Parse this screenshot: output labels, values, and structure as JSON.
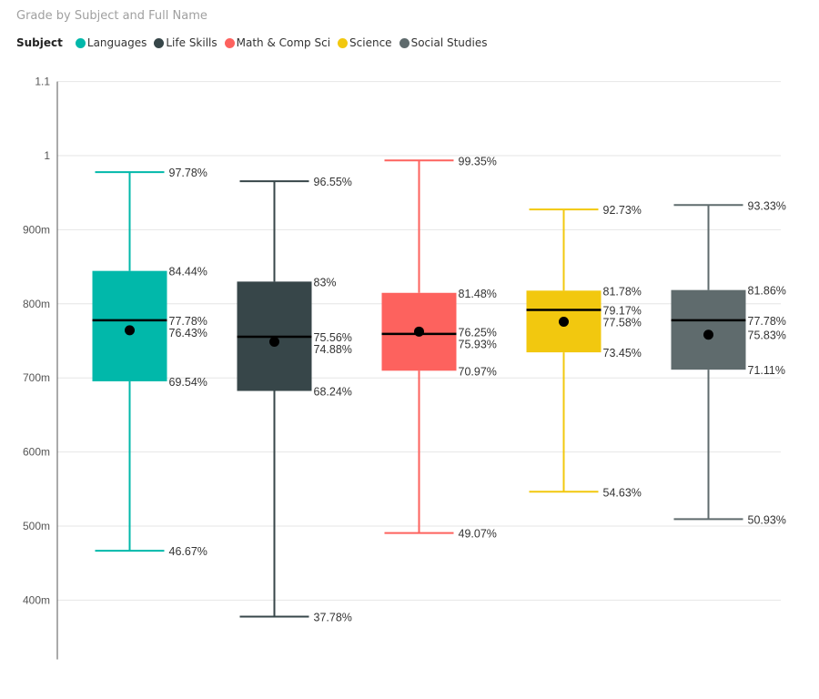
{
  "chart_data": {
    "type": "boxplot",
    "title": "Grade by Subject and Full Name",
    "legend_title": "Subject",
    "legend_position": "top-left",
    "ylim": [
      0.32,
      1.1
    ],
    "yticks": [
      0.4,
      0.5,
      0.6,
      0.7,
      0.8,
      0.9,
      1.0,
      1.1
    ],
    "ytick_labels": [
      "400m",
      "500m",
      "600m",
      "700m",
      "800m",
      "900m",
      "1",
      "1.1"
    ],
    "grid": true,
    "series": [
      {
        "name": "Languages",
        "color": "#01B8AA",
        "min": 0.4667,
        "q1": 0.6954,
        "median": 0.7778,
        "mean": 0.7643,
        "q3": 0.8444,
        "max": 0.9778,
        "labels": {
          "min": "46.67%",
          "q1": "69.54%",
          "median": "77.78%",
          "mean": "76.43%",
          "q3": "84.44%",
          "max": "97.78%"
        }
      },
      {
        "name": "Life Skills",
        "color": "#374649",
        "min": 0.3778,
        "q1": 0.6824,
        "median": 0.7556,
        "mean": 0.7488,
        "q3": 0.83,
        "max": 0.9655,
        "labels": {
          "min": "37.78%",
          "q1": "68.24%",
          "median": "75.56%",
          "mean": "74.88%",
          "q3": "83%",
          "max": "96.55%"
        }
      },
      {
        "name": "Math & Comp Sci",
        "color": "#FD625E",
        "min": 0.4907,
        "q1": 0.7097,
        "median": 0.7593,
        "mean": 0.7625,
        "q3": 0.8148,
        "max": 0.9935,
        "labels": {
          "min": "49.07%",
          "q1": "70.97%",
          "median": "75.93%",
          "mean": "76.25%",
          "q3": "81.48%",
          "max": "99.35%"
        }
      },
      {
        "name": "Science",
        "color": "#F2C80F",
        "min": 0.5463,
        "q1": 0.7345,
        "median": 0.7917,
        "mean": 0.7758,
        "q3": 0.8178,
        "max": 0.9273,
        "labels": {
          "min": "54.63%",
          "q1": "73.45%",
          "median": "79.17%",
          "mean": "77.58%",
          "q3": "81.78%",
          "max": "92.73%"
        }
      },
      {
        "name": "Social Studies",
        "color": "#5F6B6D",
        "min": 0.5093,
        "q1": 0.7111,
        "median": 0.7778,
        "mean": 0.7583,
        "q3": 0.8186,
        "max": 0.9333,
        "labels": {
          "min": "50.93%",
          "q1": "71.11%",
          "median": "77.78%",
          "mean": "75.83%",
          "q3": "81.86%",
          "max": "93.33%"
        }
      }
    ]
  }
}
